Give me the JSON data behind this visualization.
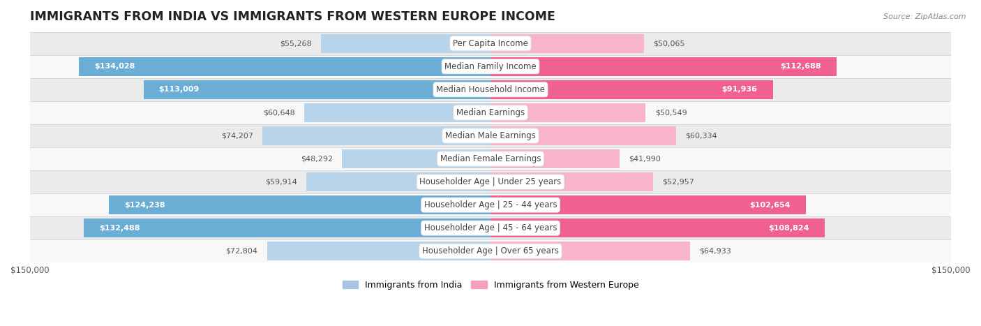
{
  "title": "IMMIGRANTS FROM INDIA VS IMMIGRANTS FROM WESTERN EUROPE INCOME",
  "source": "Source: ZipAtlas.com",
  "categories": [
    "Per Capita Income",
    "Median Family Income",
    "Median Household Income",
    "Median Earnings",
    "Median Male Earnings",
    "Median Female Earnings",
    "Householder Age | Under 25 years",
    "Householder Age | 25 - 44 years",
    "Householder Age | 45 - 64 years",
    "Householder Age | Over 65 years"
  ],
  "india_values": [
    55268,
    134028,
    113009,
    60648,
    74207,
    48292,
    59914,
    124238,
    132488,
    72804
  ],
  "western_europe_values": [
    50065,
    112688,
    91936,
    50549,
    60334,
    41990,
    52957,
    102654,
    108824,
    64933
  ],
  "india_color_light": "#b8d4ea",
  "india_color_dark": "#6aaed6",
  "western_europe_color_light": "#f8b4c8",
  "western_europe_color_dark": "#f06090",
  "inside_label_color": "#ffffff",
  "outside_label_color": "#555555",
  "legend_india_color": "#a8c4e0",
  "legend_western_europe_color": "#f4a0b8",
  "legend_india_label": "Immigrants from India",
  "legend_western_europe_label": "Immigrants from Western Europe",
  "xlim": 150000,
  "bar_height": 0.82,
  "row_bg_color_odd": "#ebebeb",
  "row_bg_color_even": "#f8f8f8",
  "category_label_color": "#444444",
  "category_label_fontsize": 8.5,
  "value_label_fontsize": 8.0,
  "title_fontsize": 12.5,
  "source_fontsize": 8.0,
  "axis_label_fontsize": 8.5,
  "inside_threshold": 75000
}
